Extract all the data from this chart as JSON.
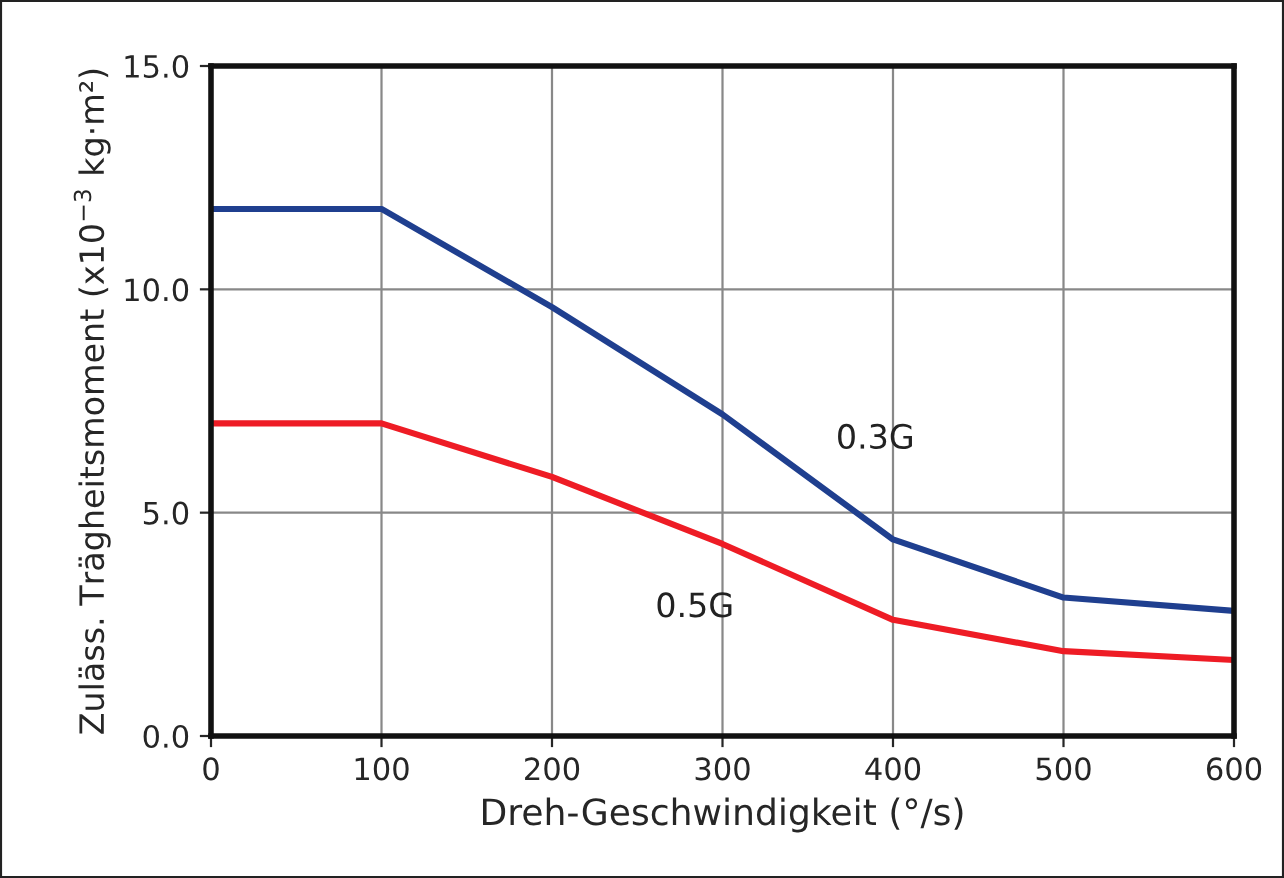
{
  "chart_data": {
    "type": "line",
    "xlabel": "Dreh-Geschwindigkeit (°/s)",
    "ylabel": "Zuläss. Trägheitsmoment (x10$^{−3}$ kg·m²)",
    "x": [
      0,
      100,
      200,
      300,
      400,
      500,
      600
    ],
    "series": [
      {
        "name": "0.3G",
        "color": "#1f3f8f",
        "values": [
          11.8,
          11.8,
          9.6,
          7.2,
          4.4,
          3.1,
          2.8
        ]
      },
      {
        "name": "0.5G",
        "color": "#ee1c25",
        "values": [
          7.0,
          7.0,
          5.8,
          4.3,
          2.6,
          1.9,
          1.7
        ]
      }
    ],
    "xlim": [
      0,
      600
    ],
    "xticks": [
      0,
      100,
      200,
      300,
      400,
      500,
      600
    ],
    "ylim": [
      0,
      15
    ],
    "yticks": [
      {
        "value": 0,
        "label": "0.0"
      },
      {
        "value": 5,
        "label": "5.0"
      },
      {
        "value": 10,
        "label": "10.0"
      },
      {
        "value": 15,
        "label": "15.0"
      }
    ],
    "grid": true,
    "legend": false,
    "marker": "none",
    "line_style": "solid"
  }
}
